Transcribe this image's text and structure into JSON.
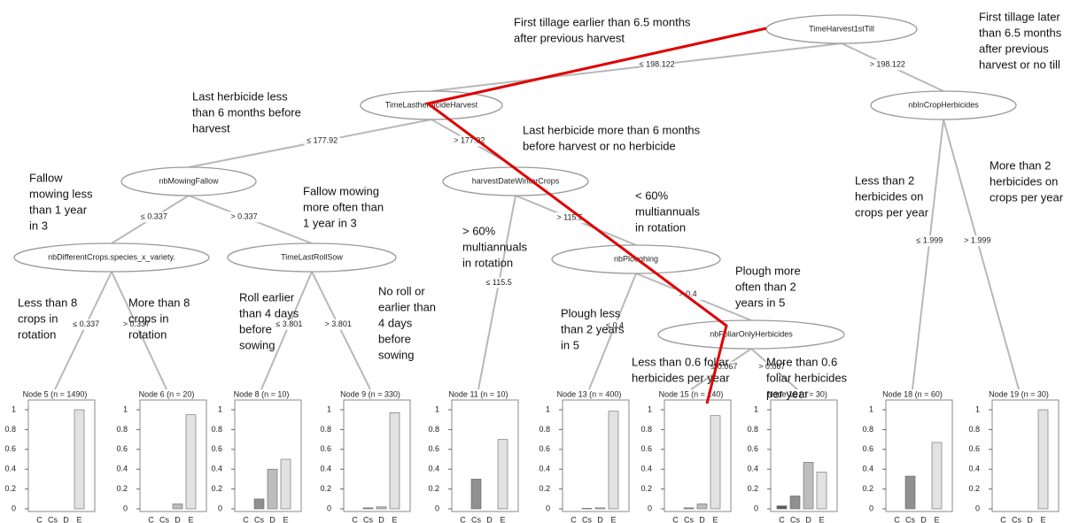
{
  "nodes": [
    {
      "label": "TimeHarvest1stTill"
    },
    {
      "label": "TimeLastherbicideHarvest"
    },
    {
      "label": "nbInCropHerbicides"
    },
    {
      "label": "nbMowingFallow"
    },
    {
      "label": "harvestDateWinterCrops"
    },
    {
      "label": "nbDifferentCrops.species_x_variety."
    },
    {
      "label": "TimeLastRollSow"
    },
    {
      "label": "nbPloughing"
    },
    {
      "label": "nbFoliarOnlyHerbicides"
    }
  ],
  "edges": [
    {
      "label": "≤ 198.122"
    },
    {
      "label": "> 198.122"
    },
    {
      "label": "≤ 177.92"
    },
    {
      "label": "> 177.92"
    },
    {
      "label": "≤ 0.337"
    },
    {
      "label": "> 0.337"
    },
    {
      "label": "≤ 115.5"
    },
    {
      "label": "> 115.5"
    },
    {
      "label": "≤ 0.337"
    },
    {
      "label": "> 0.337"
    },
    {
      "label": "≤ 3.801"
    },
    {
      "label": "> 3.801"
    },
    {
      "label": "≤ 0.4"
    },
    {
      "label": "> 0.4"
    },
    {
      "label": "≤ 0.067"
    },
    {
      "label": "> 0.067"
    },
    {
      "label": "≤ 1.999"
    },
    {
      "label": "> 1.999"
    }
  ],
  "leaf_charts": {
    "categories": [
      "C",
      "Cs",
      "D",
      "E"
    ],
    "colors": [
      "#5a5a5a",
      "#909090",
      "#bdbdbd",
      "#e2e2e2"
    ],
    "ylim": [
      0,
      1
    ],
    "yticks": [
      0,
      0.2,
      0.4,
      0.6,
      0.8,
      1
    ],
    "leaves": [
      {
        "label": "Node 5 (n = 1490)",
        "values": [
          0,
          0,
          0,
          1
        ]
      },
      {
        "label": "Node 6 (n = 20)",
        "values": [
          0,
          0,
          0.05,
          0.95
        ]
      },
      {
        "label": "Node 8 (n = 10)",
        "values": [
          0,
          0.1,
          0.4,
          0.5
        ]
      },
      {
        "label": "Node 9 (n = 330)",
        "values": [
          0,
          0.01,
          0.02,
          0.97
        ]
      },
      {
        "label": "Node 11 (n = 10)",
        "values": [
          0,
          0.3,
          0,
          0.7
        ]
      },
      {
        "label": "Node 13 (n = 400)",
        "values": [
          0,
          0.005,
          0.01,
          0.985
        ]
      },
      {
        "label": "Node 15 (n = 140)",
        "values": [
          0,
          0.01,
          0.05,
          0.94
        ]
      },
      {
        "label": "Node 16 (n = 30)",
        "values": [
          0.03,
          0.13,
          0.47,
          0.37
        ]
      },
      {
        "label": "Node 18 (n = 60)",
        "values": [
          0,
          0.33,
          0,
          0.67
        ]
      },
      {
        "label": "Node 19 (n = 30)",
        "values": [
          0,
          0,
          0,
          1
        ]
      }
    ]
  },
  "annotations": [
    {
      "lines": [
        "First tillage earlier than 6.5 months",
        "after previous harvest"
      ]
    },
    {
      "lines": [
        "First tillage later",
        "than 6.5 months",
        "after previous",
        "harvest or no till"
      ]
    },
    {
      "lines": [
        "Last herbicide less",
        "than 6 months before",
        "harvest"
      ]
    },
    {
      "lines": [
        "Last herbicide more than 6 months",
        "before harvest or no herbicide"
      ]
    },
    {
      "lines": [
        "Fallow",
        "mowing less",
        "than 1 year",
        "in 3"
      ]
    },
    {
      "lines": [
        "Fallow mowing",
        "more often than",
        "1 year in 3"
      ]
    },
    {
      "lines": [
        "> 60%",
        "multiannuals",
        "in rotation"
      ]
    },
    {
      "lines": [
        "< 60%",
        "multiannuals",
        "in rotation"
      ]
    },
    {
      "lines": [
        "Less than 2",
        "herbicides on",
        "crops per year"
      ]
    },
    {
      "lines": [
        "More than 2",
        "herbicides on",
        "crops per year"
      ]
    },
    {
      "lines": [
        "Plough more",
        "often than 2",
        "years in 5"
      ]
    },
    {
      "lines": [
        "Plough less",
        "than 2 years",
        "in 5"
      ]
    },
    {
      "lines": [
        "Less than 8",
        "crops in",
        "rotation"
      ]
    },
    {
      "lines": [
        "More than 8",
        "crops in",
        "rotation"
      ]
    },
    {
      "lines": [
        "Roll earlier",
        "than 4 days",
        "before",
        "sowing"
      ]
    },
    {
      "lines": [
        "No roll or",
        "earlier than",
        "4 days",
        "before",
        "sowing"
      ]
    },
    {
      "lines": [
        "Less than 0.6 foliar",
        "herbicides per year"
      ]
    },
    {
      "lines": [
        "More than 0.6",
        "foliar herbicides",
        "per year"
      ]
    }
  ]
}
